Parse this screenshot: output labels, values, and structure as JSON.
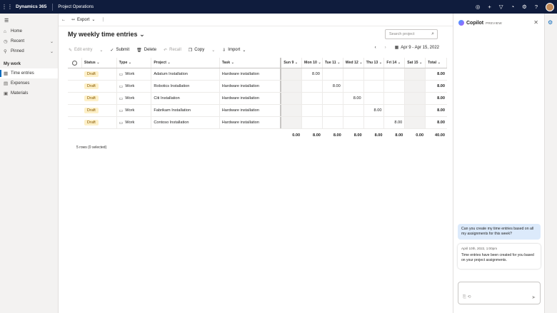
{
  "topbar": {
    "brand": "Dynamics 365",
    "app": "Project Operations",
    "icons": [
      "lightbulb-icon",
      "plus-icon",
      "filter-icon",
      "bell-icon",
      "gear-icon",
      "help-icon"
    ]
  },
  "nav": {
    "items": [
      {
        "label": "Home",
        "icon": "home-icon"
      },
      {
        "label": "Recent",
        "icon": "clock-icon"
      },
      {
        "label": "Pinned",
        "icon": "pin-icon"
      }
    ],
    "section": "My work",
    "work_items": [
      {
        "label": "Time entries",
        "icon": "calendar-icon",
        "active": true
      },
      {
        "label": "Expenses",
        "icon": "receipt-icon"
      },
      {
        "label": "Materials",
        "icon": "box-icon"
      }
    ]
  },
  "cmdbar": {
    "export_label": "Export"
  },
  "page": {
    "title": "My weekly time entries",
    "search_placeholder": "Search project"
  },
  "toolbar": {
    "edit_entry": "Edit entry",
    "submit": "Submit",
    "delete": "Delete",
    "recall": "Recall",
    "copy": "Copy",
    "import": "Import",
    "date_range": "Apr 9 - Apr 15, 2022"
  },
  "grid": {
    "headers": {
      "status": "Status",
      "type": "Type",
      "project": "Project",
      "task": "Task",
      "days": [
        "Sun 9",
        "Mon 10",
        "Tue 11",
        "Wed 12",
        "Thu 13",
        "Fri 14",
        "Sat 15"
      ],
      "total": "Total"
    },
    "rows": [
      {
        "status": "Draft",
        "type": "Work",
        "project": "Adatum Installation",
        "task": "Hardware installation",
        "days": [
          "",
          "8.00",
          "",
          "",
          "",
          "",
          ""
        ],
        "total": "8.00"
      },
      {
        "status": "Draft",
        "type": "Work",
        "project": "Robotics Installation",
        "task": "Hardware installation",
        "days": [
          "",
          "",
          "8.00",
          "",
          "",
          "",
          ""
        ],
        "total": "8.00"
      },
      {
        "status": "Draft",
        "type": "Work",
        "project": "Citi Installation",
        "task": "Hardware installation",
        "days": [
          "",
          "",
          "",
          "8.00",
          "",
          "",
          ""
        ],
        "total": "8.00"
      },
      {
        "status": "Draft",
        "type": "Work",
        "project": "Fabrikam Installation",
        "task": "Hardware installation",
        "days": [
          "",
          "",
          "",
          "",
          "8.00",
          "",
          ""
        ],
        "total": "8.00"
      },
      {
        "status": "Draft",
        "type": "Work",
        "project": "Contoso Installation",
        "task": "Hardware installation",
        "days": [
          "",
          "",
          "",
          "",
          "",
          "8.00",
          ""
        ],
        "total": "8.00"
      }
    ],
    "totals": {
      "days": [
        "0.00",
        "8.00",
        "8.00",
        "8.00",
        "8.00",
        "8.00",
        "0.00"
      ],
      "total": "40.00"
    },
    "row_count": "5 rows (0 selected)"
  },
  "copilot": {
    "title": "Copilot",
    "badge": "PREVIEW",
    "user_message": "Can you create my time entries based on all my assignments for this week?",
    "bot_time": "April 10th, 2022, 1:00pm",
    "bot_message": "Time entries have been created for you based on your project assignments."
  }
}
